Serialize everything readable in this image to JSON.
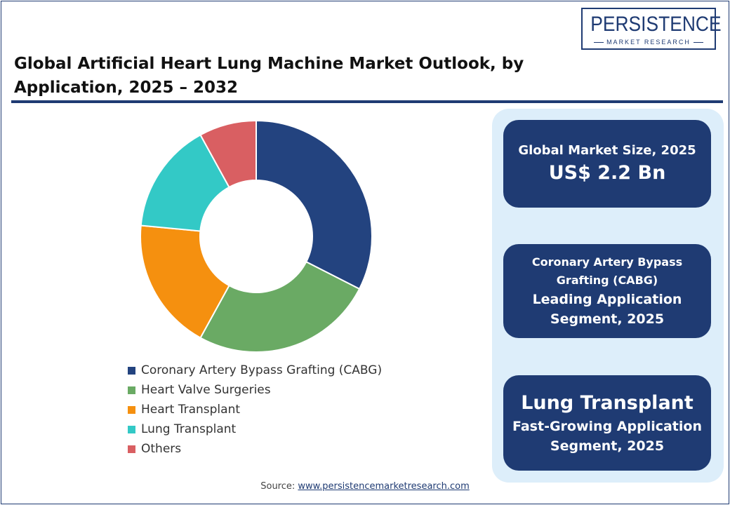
{
  "header": {
    "title": "Global Artificial Heart Lung Machine Market Outlook, by Application, 2025 – 2032",
    "logo_name": "PERSISTENCE",
    "logo_sub": "MARKET RESEARCH"
  },
  "chart_data": {
    "type": "pie",
    "donut": true,
    "title": "Global Artificial Heart Lung Machine Market Outlook, by Application, 2025 – 2032",
    "categories": [
      "Coronary Artery Bypass Grafting (CABG)",
      "Heart Valve Surgeries",
      "Heart Transplant",
      "Lung Transplant",
      "Others"
    ],
    "values": [
      32.5,
      25.5,
      18.5,
      15.5,
      8.0
    ],
    "colors": [
      "#23437f",
      "#6aaa64",
      "#f5900f",
      "#33c9c6",
      "#d95f62"
    ],
    "legend": "bottom"
  },
  "cards": {
    "market_size": {
      "label": "Global Market Size, 2025",
      "value": "US$ 2.2 Bn"
    },
    "leading": {
      "name_line1": "Coronary Artery Bypass",
      "name_line2": "Grafting (CABG)",
      "desc_line1": "Leading Application",
      "desc_line2": "Segment, 2025"
    },
    "fastest": {
      "name": "Lung Transplant",
      "desc_line1": "Fast-Growing Application",
      "desc_line2": "Segment, 2025"
    }
  },
  "source": {
    "prefix": "Source: ",
    "link": "www.persistencemarketresearch.com"
  }
}
